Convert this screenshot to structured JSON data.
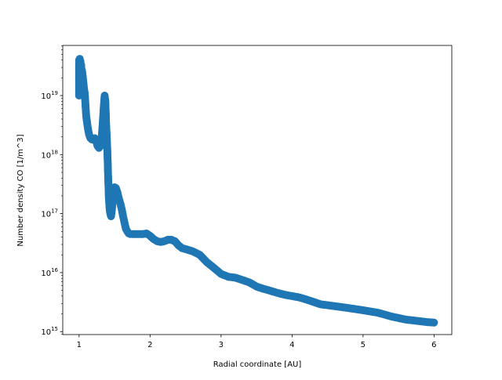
{
  "chart_data": {
    "type": "scatter",
    "title": "",
    "xlabel": "Radial coordinate [AU]",
    "ylabel": "Number density CO [1/m^3]",
    "xlim": [
      0.77,
      6.25
    ],
    "ylim_log10": [
      14.95,
      19.85
    ],
    "yscale": "log",
    "grid": false,
    "legend": "none",
    "marker_color": "#1f77b4",
    "x_ticks": [
      {
        "value": 1,
        "label": "1"
      },
      {
        "value": 2,
        "label": "2"
      },
      {
        "value": 3,
        "label": "3"
      },
      {
        "value": 4,
        "label": "4"
      },
      {
        "value": 5,
        "label": "5"
      },
      {
        "value": 6,
        "label": "6"
      }
    ],
    "y_ticks": [
      {
        "value": 1000000000000000.0,
        "base": "10",
        "exponent": "15"
      },
      {
        "value": 1e+16,
        "base": "10",
        "exponent": "16"
      },
      {
        "value": 1e+17,
        "base": "10",
        "exponent": "17"
      },
      {
        "value": 1e+18,
        "base": "10",
        "exponent": "18"
      },
      {
        "value": 1e+19,
        "base": "10",
        "exponent": "19"
      }
    ],
    "series": [
      {
        "x": [
          1.0,
          1.0,
          1.0,
          1.0,
          1.01,
          1.01,
          1.02,
          1.02,
          1.03,
          1.03,
          1.04,
          1.05,
          1.06,
          1.07,
          1.08,
          1.09,
          1.1,
          1.12,
          1.14,
          1.16,
          1.18,
          1.2,
          1.22,
          1.24,
          1.26,
          1.28,
          1.3,
          1.32,
          1.34,
          1.35,
          1.36,
          1.37,
          1.38,
          1.39,
          1.4,
          1.41,
          1.42,
          1.43,
          1.44,
          1.45,
          1.46,
          1.47,
          1.48,
          1.5,
          1.52,
          1.54,
          1.56,
          1.58,
          1.6,
          1.62,
          1.64,
          1.66,
          1.68,
          1.7,
          1.72,
          1.75,
          1.8,
          1.85,
          1.9,
          1.95,
          2.0,
          2.05,
          2.1,
          2.15,
          2.2,
          2.25,
          2.3,
          2.35,
          2.4,
          2.45,
          2.5,
          2.6,
          2.7,
          2.8,
          2.9,
          3.0,
          3.1,
          3.2,
          3.3,
          3.4,
          3.5,
          3.6,
          3.7,
          3.8,
          3.9,
          4.0,
          4.1,
          4.2,
          4.3,
          4.4,
          4.5,
          4.6,
          4.7,
          4.8,
          4.9,
          5.0,
          5.1,
          5.2,
          5.3,
          5.4,
          5.5,
          5.6,
          5.7,
          5.8,
          5.9,
          6.0
        ],
        "y": [
          1e+19,
          2e+19,
          3.5e+19,
          4e+19,
          4.2e+19,
          1.2e+19,
          3.8e+19,
          1.5e+19,
          3.3e+19,
          1.3e+19,
          2.7e+19,
          2.2e+19,
          1.7e+19,
          1.3e+19,
          1.1e+19,
          7e+18,
          4.5e+18,
          3e+18,
          2.2e+18,
          1.9e+18,
          1.8e+18,
          1.8e+18,
          1.9e+18,
          1.7e+18,
          1.4e+18,
          1.3e+18,
          1.4e+18,
          2e+18,
          4.5e+18,
          7e+18,
          1e+19,
          8e+18,
          3.5e+18,
          2e+18,
          1e+18,
          4e+17,
          1.8e+17,
          1.2e+17,
          1e+17,
          9e+16,
          1.1e+17,
          1.5e+17,
          2e+17,
          2.8e+17,
          2.7e+17,
          2.3e+17,
          1.8e+17,
          1.5e+17,
          1.2e+17,
          9e+16,
          7e+16,
          5.5e+16,
          5e+16,
          4.6e+16,
          4.5e+16,
          4.5e+16,
          4.5e+16,
          4.5e+16,
          4.5e+16,
          4.6e+16,
          4.2e+16,
          3.7e+16,
          3.4e+16,
          3.3e+16,
          3.4e+16,
          3.6e+16,
          3.6e+16,
          3.4e+16,
          2.9e+16,
          2.6e+16,
          2.5e+16,
          2.3e+16,
          2e+16,
          1.5e+16,
          1.2e+16,
          9500000000000000.0,
          8500000000000000.0,
          8200000000000000.0,
          7500000000000000.0,
          6800000000000000.0,
          5800000000000000.0,
          5300000000000000.0,
          4900000000000000.0,
          4500000000000000.0,
          4200000000000000.0,
          4000000000000000.0,
          3800000000000000.0,
          3500000000000000.0,
          3200000000000000.0,
          2900000000000000.0,
          2800000000000000.0,
          2700000000000000.0,
          2600000000000000.0,
          2500000000000000.0,
          2400000000000000.0,
          2300000000000000.0,
          2200000000000000.0,
          2100000000000000.0,
          1950000000000000.0,
          1800000000000000.0,
          1700000000000000.0,
          1600000000000000.0,
          1550000000000000.0,
          1500000000000000.0,
          1450000000000000.0,
          1420000000000000.0
        ]
      }
    ]
  }
}
